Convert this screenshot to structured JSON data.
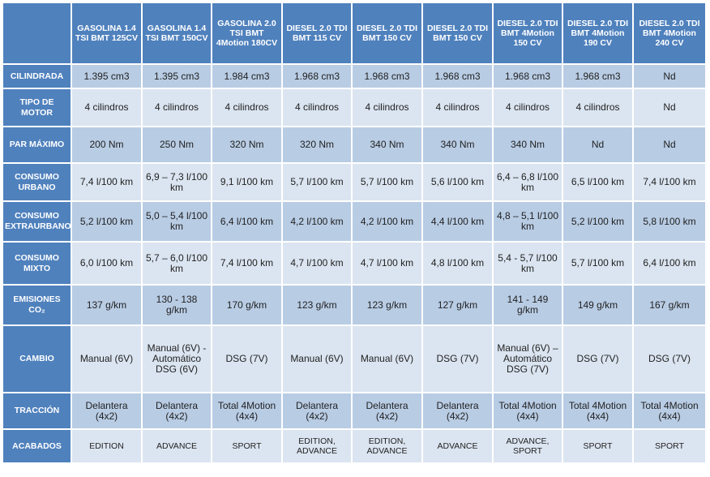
{
  "columns": [
    "GASOLINA 1.4 TSI BMT 125CV",
    "GASOLINA 1.4 TSI BMT 150CV",
    "GASOLINA 2.0 TSI BMT 4Motion 180CV",
    "DIESEL 2.0 TDI BMT 115 CV",
    "DIESEL 2.0 TDI BMT 150 CV",
    "DIESEL 2.0 TDI BMT 150 CV",
    "DIESEL 2.0 TDI BMT 4Motion 150 CV",
    "DIESEL 2.0 TDI BMT 4Motion 190 CV",
    "DIESEL 2.0 TDI BMT 4Motion 240 CV"
  ],
  "rows": [
    {
      "label": "CILINDRADA",
      "cells": [
        "1.395 cm3",
        "1.395 cm3",
        "1.984 cm3",
        "1.968 cm3",
        "1.968 cm3",
        "1.968 cm3",
        "1.968 cm3",
        "1.968 cm3",
        "Nd"
      ]
    },
    {
      "label": "TIPO DE MOTOR",
      "cells": [
        "4 cilindros",
        "4 cilindros",
        "4 cilindros",
        "4 cilindros",
        "4 cilindros",
        "4 cilindros",
        "4 cilindros",
        "4 cilindros",
        "Nd"
      ]
    },
    {
      "label": "PAR MÁXIMO",
      "cells": [
        "200 Nm",
        "250 Nm",
        "320 Nm",
        "320 Nm",
        "340 Nm",
        "340 Nm",
        "340 Nm",
        "Nd",
        "Nd"
      ]
    },
    {
      "label": "CONSUMO URBANO",
      "cells": [
        "7,4 l/100 km",
        "6,9 – 7,3 l/100 km",
        "9,1 l/100 km",
        "5,7 l/100 km",
        "5,7 l/100 km",
        "5,6 l/100 km",
        "6,4 – 6,8 l/100 km",
        "6,5 l/100 km",
        "7,4 l/100 km"
      ]
    },
    {
      "label": "CONSUMO EXTRAURBANO",
      "cells": [
        "5,2 l/100 km",
        "5,0 – 5,4 l/100 km",
        "6,4 l/100 km",
        "4,2 l/100 km",
        "4,2 l/100 km",
        "4,4 l/100 km",
        "4,8 – 5,1 l/100 km",
        "5,2 l/100 km",
        "5,8 l/100 km"
      ]
    },
    {
      "label": "CONSUMO MIXTO",
      "cells": [
        "6,0 l/100 km",
        "5,7 – 6,0 l/100 km",
        "7,4 l/100 km",
        "4,7 l/100 km",
        "4,7 l/100 km",
        "4,8 l/100 km",
        "5,4 - 5,7 l/100 km",
        "5,7 l/100 km",
        "6,4 l/100 km"
      ]
    },
    {
      "label": "EMISIONES CO₂",
      "cells": [
        "137 g/km",
        "130 - 138 g/km",
        "170 g/km",
        "123 g/km",
        "123 g/km",
        "127 g/km",
        "141 - 149 g/km",
        "149 g/km",
        "167 g/km"
      ]
    },
    {
      "label": "CAMBIO",
      "cells": [
        "Manual (6V)",
        "Manual (6V) - Automático DSG (6V)",
        "DSG (7V)",
        "Manual (6V)",
        "Manual (6V)",
        "DSG (7V)",
        "Manual (6V) – Automático DSG (7V)",
        "DSG (7V)",
        "DSG (7V)"
      ]
    },
    {
      "label": "TRACCIÓN",
      "cells": [
        "Delantera (4x2)",
        "Delantera (4x2)",
        "Total 4Motion (4x4)",
        "Delantera (4x2)",
        "Delantera (4x2)",
        "Delantera (4x2)",
        "Total 4Motion (4x4)",
        "Total 4Motion (4x4)",
        "Total 4Motion (4x4)"
      ]
    },
    {
      "label": "ACABADOS",
      "cells": [
        "EDITION",
        "ADVANCE",
        "SPORT",
        "EDITION, ADVANCE",
        "EDITION, ADVANCE",
        "ADVANCE",
        "ADVANCE, SPORT",
        "SPORT",
        "SPORT"
      ]
    }
  ]
}
